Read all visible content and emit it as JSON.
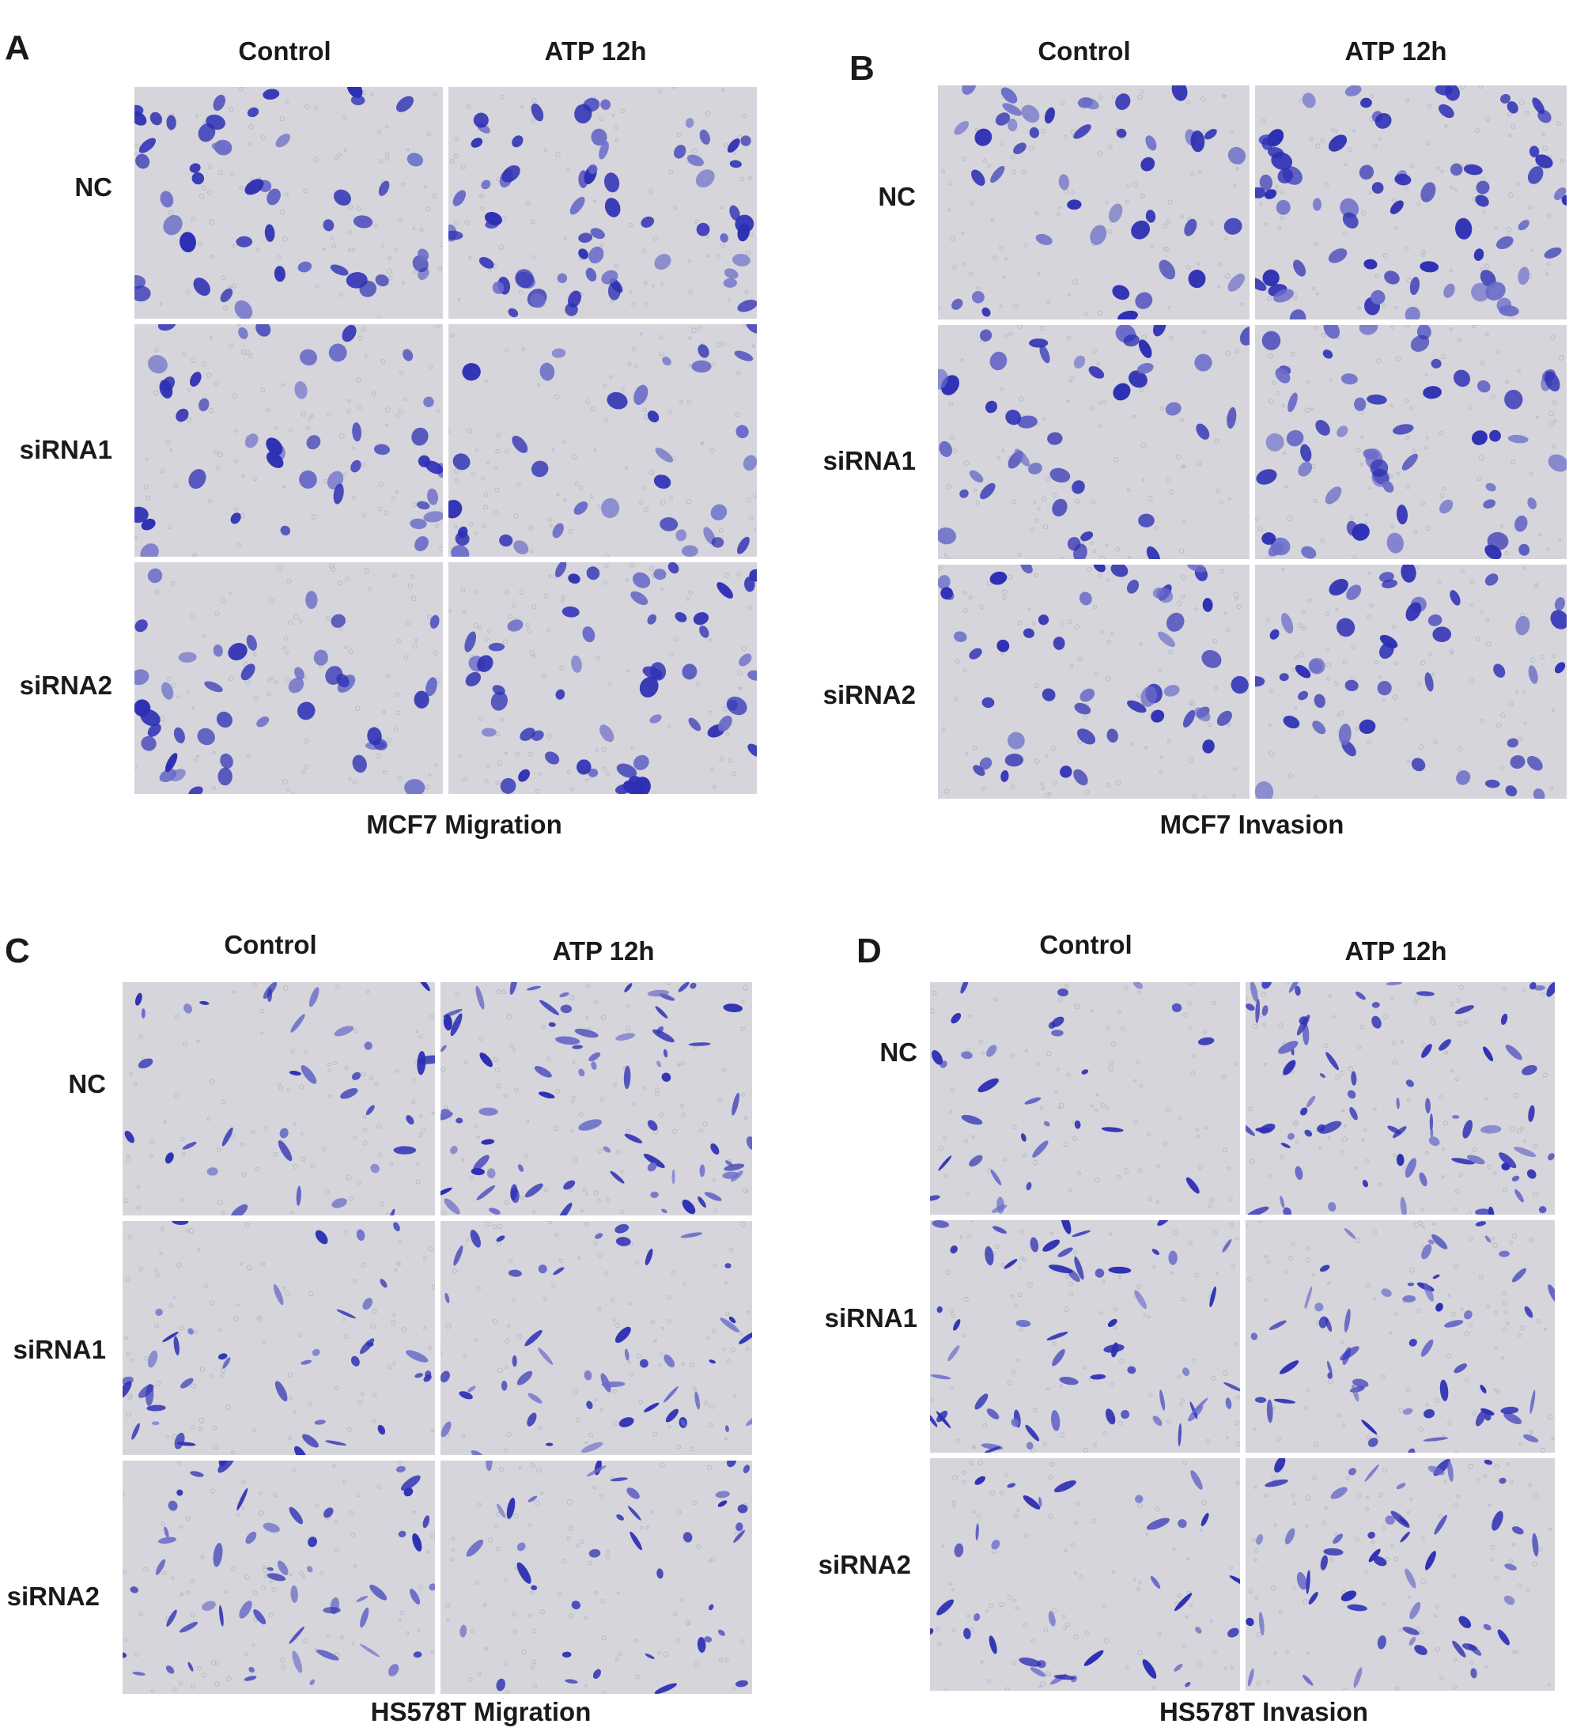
{
  "panels": [
    {
      "letter": "A",
      "columns": [
        "Control",
        "ATP 12h"
      ],
      "rows": [
        "NC",
        "siRNA1",
        "siRNA2"
      ],
      "caption": "MCF7 Migration",
      "cell_morphology": "round"
    },
    {
      "letter": "B",
      "columns": [
        "Control",
        "ATP 12h"
      ],
      "rows": [
        "NC",
        "siRNA1",
        "siRNA2"
      ],
      "caption": "MCF7 Invasion",
      "cell_morphology": "round"
    },
    {
      "letter": "C",
      "columns": [
        "Control",
        "ATP 12h"
      ],
      "rows": [
        "NC",
        "siRNA1",
        "siRNA2"
      ],
      "caption": "HS578T Migration",
      "cell_morphology": "spindle"
    },
    {
      "letter": "D",
      "columns": [
        "Control",
        "ATP 12h"
      ],
      "rows": [
        "NC",
        "siRNA1",
        "siRNA2"
      ],
      "caption": "HS578T Invasion",
      "cell_morphology": "spindle"
    }
  ],
  "colors": {
    "stain": "#2d2fb4",
    "stain_light": "#6a6cc8",
    "membrane_bg": "#d5d5db",
    "membrane_pore": "#b9bcc4"
  }
}
